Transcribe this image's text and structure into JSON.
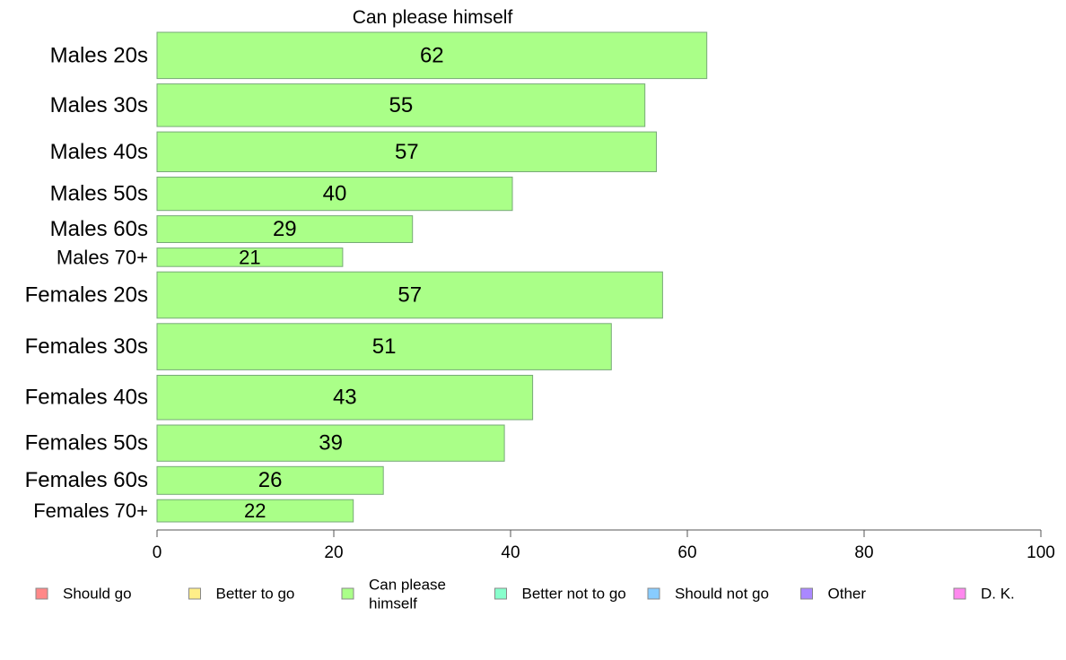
{
  "chart_data": {
    "type": "bar",
    "orientation": "horizontal",
    "title": "Can please himself",
    "xlabel": "",
    "ylabel": "",
    "xlim": [
      0,
      100
    ],
    "xticks": [
      0,
      20,
      40,
      60,
      80,
      100
    ],
    "grid": false,
    "bar_color": "#aaff88",
    "bar_edge_color": "#77aa77",
    "categories": [
      "Males 20s",
      "Males 30s",
      "Males 40s",
      "Males 50s",
      "Males 60s",
      "Males 70+",
      "Females 20s",
      "Females 30s",
      "Females 40s",
      "Females 50s",
      "Females 60s",
      "Females 70+"
    ],
    "values": [
      62.2,
      55.2,
      56.5,
      40.2,
      28.9,
      21.0,
      57.2,
      51.4,
      42.5,
      39.3,
      25.6,
      22.2
    ],
    "data_labels": [
      "62",
      "55",
      "57",
      "40",
      "29",
      "21",
      "57",
      "51",
      "43",
      "39",
      "26",
      "22"
    ],
    "row_weights": [
      1.0,
      0.92,
      0.86,
      0.72,
      0.58,
      0.4,
      1.0,
      1.0,
      0.96,
      0.78,
      0.6,
      0.48
    ],
    "legend": {
      "placement": "bottom",
      "items": [
        {
          "label": "Should go",
          "color": "#ff8888"
        },
        {
          "label": "Better to go",
          "color": "#ffee88"
        },
        {
          "label": "Can please himself",
          "color": "#aaff88"
        },
        {
          "label": "Better not to go",
          "color": "#88ffcc"
        },
        {
          "label": "Should not go",
          "color": "#88ccff"
        },
        {
          "label": "Other",
          "color": "#aa88ff"
        },
        {
          "label": "D. K.",
          "color": "#ff88ee"
        }
      ]
    }
  }
}
